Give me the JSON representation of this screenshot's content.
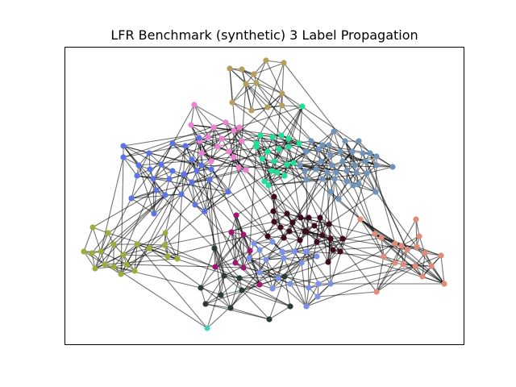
{
  "title": "LFR Benchmark (synthetic) 3 Label Propagation",
  "communities": [
    {
      "id": "tan",
      "color": "#b59f5e"
    },
    {
      "id": "pink",
      "color": "#f07fd2"
    },
    {
      "id": "mint",
      "color": "#1ee096"
    },
    {
      "id": "steel",
      "color": "#6f93ba"
    },
    {
      "id": "blue",
      "color": "#5b73e6"
    },
    {
      "id": "olive",
      "color": "#9bad3b"
    },
    {
      "id": "darkred",
      "color": "#3d0a22"
    },
    {
      "id": "magenta",
      "color": "#a1166f"
    },
    {
      "id": "periwinkle",
      "color": "#7b92ea"
    },
    {
      "id": "salmon",
      "color": "#e28b7b"
    },
    {
      "id": "darkslate",
      "color": "#2a3d35"
    },
    {
      "id": "turquoise",
      "color": "#46d1b6"
    }
  ]
}
